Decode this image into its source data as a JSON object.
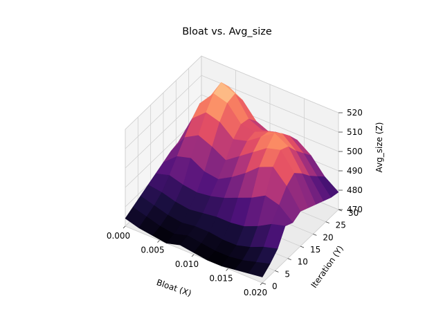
{
  "chart_data": {
    "type": "surface3d",
    "title": "Bloat vs. Avg_size",
    "xlabel": "Bloat (X)",
    "ylabel": "Iteration (Y)",
    "zlabel": "Avg_size (Z)",
    "xlim": [
      0.0,
      0.02
    ],
    "ylim": [
      0,
      30
    ],
    "zlim": [
      470,
      520
    ],
    "x_ticks": [
      "0.000",
      "0.005",
      "0.010",
      "0.015",
      "0.020"
    ],
    "y_ticks": [
      "0",
      "5",
      "10",
      "15",
      "20",
      "25",
      "30"
    ],
    "z_ticks": [
      "470",
      "480",
      "490",
      "500",
      "510",
      "520"
    ],
    "colormap": "magma",
    "pane_color": "#f2f2f2",
    "grid": true,
    "x": [
      0.0,
      0.002,
      0.004,
      0.006,
      0.008,
      0.01,
      0.012,
      0.014,
      0.016,
      0.018,
      0.02
    ],
    "y": [
      0,
      3,
      6,
      9,
      12,
      15,
      18,
      21,
      24,
      27,
      30
    ],
    "z": [
      [
        474,
        472,
        471,
        470,
        472,
        471,
        470,
        470,
        471,
        472,
        473
      ],
      [
        476,
        474,
        472,
        471,
        473,
        472,
        471,
        471,
        472,
        474,
        476
      ],
      [
        478,
        476,
        474,
        473,
        474,
        474,
        473,
        473,
        475,
        478,
        480
      ],
      [
        480,
        479,
        477,
        476,
        477,
        478,
        478,
        479,
        482,
        486,
        488
      ],
      [
        482,
        484,
        482,
        481,
        482,
        484,
        487,
        490,
        494,
        492,
        486
      ],
      [
        484,
        490,
        492,
        488,
        487,
        491,
        496,
        502,
        505,
        498,
        488
      ],
      [
        486,
        496,
        500,
        497,
        493,
        498,
        503,
        508,
        510,
        501,
        486
      ],
      [
        487,
        502,
        508,
        506,
        500,
        502,
        507,
        512,
        508,
        497,
        484
      ],
      [
        486,
        506,
        514,
        512,
        504,
        503,
        506,
        508,
        502,
        492,
        482
      ],
      [
        484,
        504,
        516,
        513,
        503,
        500,
        502,
        503,
        497,
        488,
        480
      ],
      [
        482,
        498,
        510,
        506,
        498,
        495,
        496,
        497,
        492,
        484,
        479
      ]
    ]
  }
}
